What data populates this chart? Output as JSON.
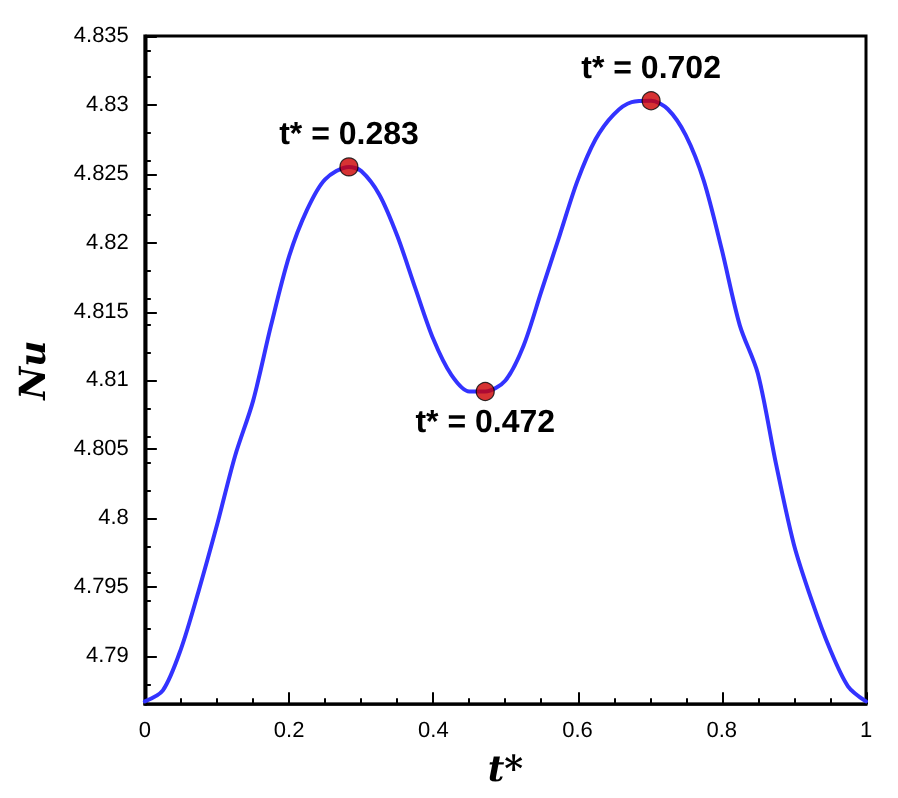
{
  "chart_data": {
    "type": "line",
    "xlabel": "t*",
    "ylabel": "Nu",
    "xlim": [
      0,
      1
    ],
    "xticks": [
      0,
      0.2,
      0.4,
      0.6,
      0.8,
      1
    ],
    "ylim": [
      4.7865,
      4.835
    ],
    "yticks": [
      4.79,
      4.795,
      4.8,
      4.805,
      4.81,
      4.815,
      4.82,
      4.825,
      4.83,
      4.835
    ],
    "grid": false,
    "line_style": "solid",
    "series": [
      {
        "color": "#3333ff",
        "marker": "none",
        "x": [
          0,
          0.025,
          0.05,
          0.075,
          0.1,
          0.125,
          0.15,
          0.175,
          0.2,
          0.225,
          0.25,
          0.283,
          0.3,
          0.325,
          0.35,
          0.375,
          0.4,
          0.425,
          0.45,
          0.472,
          0.5,
          0.525,
          0.55,
          0.575,
          0.6,
          0.625,
          0.65,
          0.675,
          0.702,
          0.725,
          0.75,
          0.775,
          0.8,
          0.825,
          0.85,
          0.875,
          0.9,
          0.925,
          0.95,
          0.975,
          1
        ],
        "values": [
          4.7867,
          4.7875,
          4.7905,
          4.7948,
          4.7995,
          4.8045,
          4.8085,
          4.814,
          4.819,
          4.8224,
          4.8246,
          4.8255,
          4.8252,
          4.8235,
          4.8205,
          4.8167,
          4.813,
          4.8104,
          4.8092,
          4.8092,
          4.81,
          4.8125,
          4.8165,
          4.8205,
          4.8245,
          4.8275,
          4.8293,
          4.8302,
          4.8303,
          4.8297,
          4.8278,
          4.8245,
          4.8195,
          4.814,
          4.8105,
          4.804,
          4.7981,
          4.794,
          4.7905,
          4.7878,
          4.7867
        ]
      },
      {
        "type": "scatter",
        "color": "#cc0000",
        "marker": "circle",
        "x": [
          0.283,
          0.472,
          0.702
        ],
        "values": [
          4.8255,
          4.8092,
          4.8303
        ]
      }
    ],
    "annotations": [
      {
        "text": "t* = 0.283",
        "x": 0.283,
        "y": 4.8255
      },
      {
        "text": "t* = 0.472",
        "x": 0.472,
        "y": 4.8092
      },
      {
        "text": "t* = 0.702",
        "x": 0.702,
        "y": 4.8303
      }
    ]
  }
}
